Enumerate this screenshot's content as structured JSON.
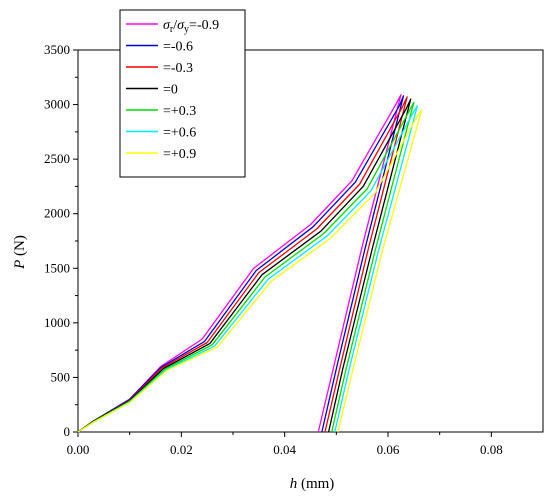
{
  "chart_data": {
    "type": "line",
    "xlabel_symbol": "h",
    "xlabel_unit": " (mm)",
    "ylabel_symbol": "P",
    "ylabel_unit": " (N)",
    "xlim": [
      0,
      0.09
    ],
    "ylim": [
      0,
      3500
    ],
    "xticks": [
      0.0,
      0.02,
      0.04,
      0.06,
      0.08
    ],
    "xtick_labels": [
      "0.00",
      "0.02",
      "0.04",
      "0.06",
      "0.08"
    ],
    "yticks": [
      0,
      500,
      1000,
      1500,
      2000,
      2500,
      3000,
      3500
    ],
    "ytick_labels": [
      "0",
      "500",
      "1000",
      "1500",
      "2000",
      "2500",
      "3000",
      "3500"
    ],
    "grid": false,
    "legend_placement": "top-left",
    "legend_first_sigma_r": "σ",
    "legend_first_sub_r": "r",
    "legend_first_slash": "/",
    "legend_first_sigma_y": "σ",
    "legend_first_sub_y": "y",
    "series": [
      {
        "name": "=-0.9",
        "color": "#ff00ff",
        "loading": [
          [
            0,
            0
          ],
          [
            0.003,
            100
          ],
          [
            0.01,
            300
          ],
          [
            0.016,
            600
          ],
          [
            0.024,
            850
          ],
          [
            0.034,
            1500
          ],
          [
            0.045,
            1900
          ],
          [
            0.053,
            2300
          ],
          [
            0.0615,
            3000
          ],
          [
            0.0625,
            3090
          ]
        ],
        "unloading": [
          [
            0.0625,
            3090
          ],
          [
            0.055,
            1700
          ],
          [
            0.0495,
            600
          ],
          [
            0.0465,
            0
          ]
        ]
      },
      {
        "name": "=-0.6",
        "color": "#0000cc",
        "loading": [
          [
            0,
            0
          ],
          [
            0.003,
            100
          ],
          [
            0.01,
            300
          ],
          [
            0.016,
            590
          ],
          [
            0.0245,
            830
          ],
          [
            0.0345,
            1480
          ],
          [
            0.0455,
            1880
          ],
          [
            0.0537,
            2290
          ],
          [
            0.0622,
            2990
          ],
          [
            0.063,
            3080
          ]
        ],
        "unloading": [
          [
            0.063,
            3080
          ],
          [
            0.0556,
            1690
          ],
          [
            0.0501,
            600
          ],
          [
            0.0472,
            0
          ]
        ]
      },
      {
        "name": "=-0.3",
        "color": "#ff0000",
        "loading": [
          [
            0,
            0
          ],
          [
            0.003,
            100
          ],
          [
            0.01,
            290
          ],
          [
            0.0162,
            585
          ],
          [
            0.025,
            820
          ],
          [
            0.035,
            1460
          ],
          [
            0.0462,
            1860
          ],
          [
            0.0545,
            2270
          ],
          [
            0.0628,
            2980
          ],
          [
            0.0637,
            3070
          ]
        ],
        "unloading": [
          [
            0.0637,
            3070
          ],
          [
            0.0562,
            1680
          ],
          [
            0.0507,
            590
          ],
          [
            0.0478,
            0
          ]
        ]
      },
      {
        "name": "=0",
        "color": "#000000",
        "loading": [
          [
            0,
            0
          ],
          [
            0.003,
            100
          ],
          [
            0.01,
            285
          ],
          [
            0.0165,
            580
          ],
          [
            0.0255,
            810
          ],
          [
            0.0356,
            1440
          ],
          [
            0.047,
            1840
          ],
          [
            0.0552,
            2250
          ],
          [
            0.0635,
            2960
          ],
          [
            0.0644,
            3050
          ]
        ],
        "unloading": [
          [
            0.0644,
            3050
          ],
          [
            0.0569,
            1670
          ],
          [
            0.0513,
            590
          ],
          [
            0.0485,
            0
          ]
        ]
      },
      {
        "name": "=+0.3",
        "color": "#00dd00",
        "loading": [
          [
            0,
            0
          ],
          [
            0.003,
            95
          ],
          [
            0.01,
            280
          ],
          [
            0.0168,
            575
          ],
          [
            0.026,
            800
          ],
          [
            0.0362,
            1420
          ],
          [
            0.0476,
            1820
          ],
          [
            0.056,
            2230
          ],
          [
            0.0641,
            2940
          ],
          [
            0.065,
            3020
          ]
        ],
        "unloading": [
          [
            0.065,
            3020
          ],
          [
            0.0575,
            1660
          ],
          [
            0.0519,
            580
          ],
          [
            0.0491,
            0
          ]
        ]
      },
      {
        "name": "=+0.6",
        "color": "#00eeee",
        "loading": [
          [
            0,
            0
          ],
          [
            0.003,
            90
          ],
          [
            0.01,
            275
          ],
          [
            0.017,
            570
          ],
          [
            0.0265,
            790
          ],
          [
            0.0368,
            1400
          ],
          [
            0.0483,
            1800
          ],
          [
            0.0567,
            2210
          ],
          [
            0.0648,
            2920
          ],
          [
            0.0657,
            2990
          ]
        ],
        "unloading": [
          [
            0.0657,
            2990
          ],
          [
            0.0581,
            1650
          ],
          [
            0.0525,
            580
          ],
          [
            0.0497,
            0
          ]
        ]
      },
      {
        "name": "=+0.9",
        "color": "#ffff00",
        "loading": [
          [
            0,
            0
          ],
          [
            0.003,
            90
          ],
          [
            0.01,
            270
          ],
          [
            0.0172,
            565
          ],
          [
            0.027,
            780
          ],
          [
            0.0374,
            1380
          ],
          [
            0.049,
            1780
          ],
          [
            0.0575,
            2190
          ],
          [
            0.0655,
            2880
          ],
          [
            0.0665,
            2950
          ]
        ],
        "unloading": [
          [
            0.0665,
            2950
          ],
          [
            0.0588,
            1640
          ],
          [
            0.0532,
            570
          ],
          [
            0.0503,
            0
          ]
        ]
      }
    ]
  }
}
